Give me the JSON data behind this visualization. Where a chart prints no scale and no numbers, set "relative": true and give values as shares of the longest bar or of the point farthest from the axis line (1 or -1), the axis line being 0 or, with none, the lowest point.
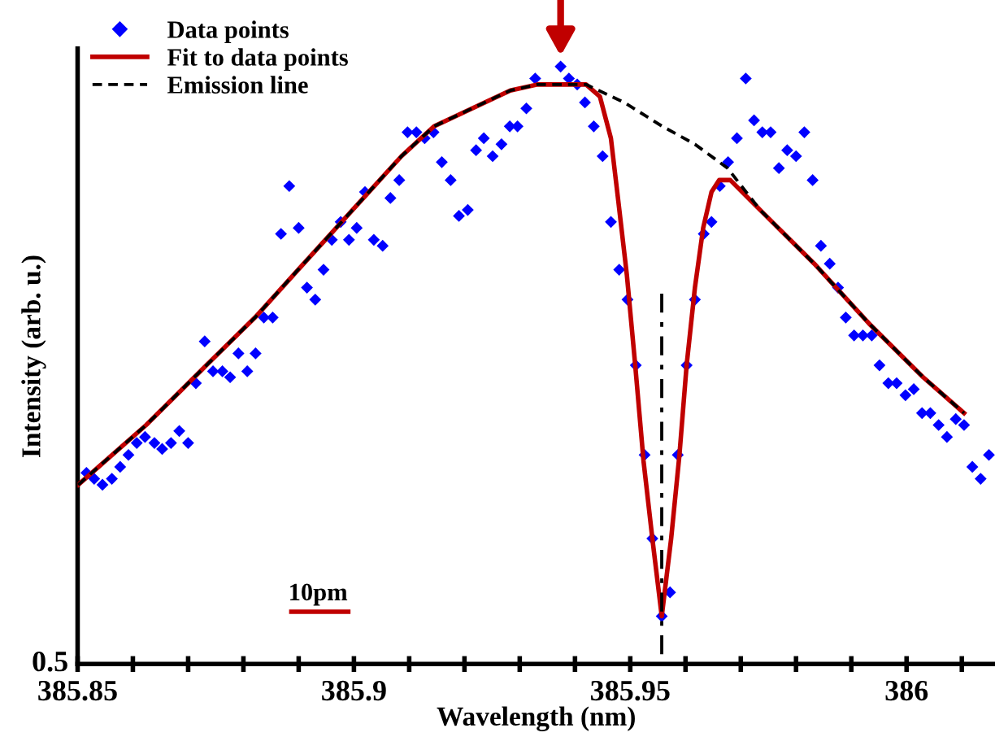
{
  "chart_data": {
    "type": "scatter",
    "relative": true,
    "xlabel": "Wavelength (nm)",
    "ylabel": "Intensity (arb. u.)",
    "xlim": [
      385.85,
      386.016
    ],
    "xticks": [
      385.85,
      {
        "value": 385.86,
        "label": null
      },
      {
        "value": 385.87,
        "label": null
      },
      {
        "value": 385.88,
        "label": null
      },
      {
        "value": 385.89,
        "label": null
      },
      385.9,
      {
        "value": 385.91,
        "label": null
      },
      {
        "value": 385.92,
        "label": null
      },
      {
        "value": 385.93,
        "label": null
      },
      {
        "value": 385.94,
        "label": null
      },
      385.95,
      {
        "value": 385.96,
        "label": null
      },
      {
        "value": 385.97,
        "label": null
      },
      {
        "value": 385.98,
        "label": null
      },
      {
        "value": 385.99,
        "label": null
      },
      386,
      {
        "value": 386.01,
        "label": null
      }
    ],
    "legend": "top left",
    "grid": false,
    "annotations": [
      "0.5",
      "10pm"
    ],
    "series": [
      {
        "name": "Data points",
        "marker": "diamond",
        "color": "#0000ff",
        "x": [
          385.8516,
          385.853,
          385.8545,
          385.8562,
          385.8577,
          385.8592,
          385.8607,
          385.8622,
          385.8639,
          385.8653,
          385.8669,
          385.8684,
          385.87,
          385.8714,
          385.873,
          385.8745,
          385.8762,
          385.8776,
          385.8791,
          385.8807,
          385.8822,
          385.8837,
          385.8853,
          385.8868,
          385.8883,
          385.89,
          385.8915,
          385.893,
          385.8945,
          385.896,
          385.8976,
          385.8991,
          385.9005,
          385.902,
          385.9036,
          385.9052,
          385.9066,
          385.9082,
          385.9097,
          385.9113,
          385.9128,
          385.9144,
          385.9159,
          385.9175,
          385.919,
          385.9206,
          385.9221,
          385.9235,
          385.9251,
          385.9267,
          385.9282,
          385.9296,
          385.9312,
          385.9328,
          385.9374,
          385.9389,
          385.9404,
          385.9418,
          385.9434,
          385.945,
          385.9465,
          385.948,
          385.9495,
          385.951,
          385.9526,
          385.954,
          385.9557,
          385.9572,
          385.9586,
          385.9602,
          385.9617,
          385.9633,
          385.9647,
          385.9662,
          385.9677,
          385.9693,
          385.9709,
          385.9724,
          385.9739,
          385.9754,
          385.9769,
          385.9784,
          385.98,
          385.9815,
          385.983,
          385.9845,
          385.9861,
          385.9876,
          385.989,
          385.9905,
          385.9921,
          385.9937,
          385.9951,
          385.9967,
          385.9982,
          385.9998,
          386.0013,
          386.0028,
          386.0043,
          386.0058,
          386.0073,
          386.0089,
          386.0104,
          386.0119,
          386.0134,
          386.0149
        ],
        "values": [
          0.32,
          0.31,
          0.3,
          0.31,
          0.33,
          0.35,
          0.37,
          0.38,
          0.37,
          0.36,
          0.37,
          0.39,
          0.37,
          0.47,
          0.54,
          0.49,
          0.49,
          0.48,
          0.52,
          0.49,
          0.52,
          0.58,
          0.58,
          0.72,
          0.8,
          0.73,
          0.63,
          0.61,
          0.66,
          0.71,
          0.74,
          0.71,
          0.73,
          0.79,
          0.71,
          0.7,
          0.78,
          0.81,
          0.89,
          0.89,
          0.88,
          0.89,
          0.84,
          0.81,
          0.75,
          0.76,
          0.86,
          0.88,
          0.85,
          0.87,
          0.9,
          0.9,
          0.93,
          0.98,
          1,
          0.98,
          0.97,
          0.94,
          0.9,
          0.85,
          0.74,
          0.66,
          0.61,
          0.5,
          0.35,
          0.21,
          0.08,
          0.12,
          0.35,
          0.5,
          0.61,
          0.72,
          0.74,
          0.8,
          0.84,
          0.88,
          0.98,
          0.91,
          0.89,
          0.89,
          0.83,
          0.86,
          0.85,
          0.89,
          0.81,
          0.7,
          0.67,
          0.63,
          0.58,
          0.55,
          0.55,
          0.55,
          0.5,
          0.47,
          0.47,
          0.45,
          0.46,
          0.42,
          0.42,
          0.4,
          0.38,
          0.41,
          0.4,
          0.33,
          0.31,
          0.35
        ]
      },
      {
        "name": "Fit to data points",
        "type": "line",
        "line_style": "solid",
        "color": "#c00000",
        "x": [
          385.8501,
          385.8624,
          385.8722,
          385.8821,
          385.8899,
          385.8968,
          385.9027,
          385.9086,
          385.9145,
          385.9214,
          385.9283,
          385.9332,
          385.9376,
          385.942,
          385.9445,
          385.9465,
          385.9479,
          385.9494,
          385.9509,
          385.9524,
          385.954,
          385.9557,
          385.9574,
          385.9589,
          385.9602,
          385.9617,
          385.9632,
          385.9647,
          385.9661,
          385.9681,
          385.9735,
          385.9833,
          385.9932,
          386.003,
          386.0104
        ],
        "values": [
          0.3,
          0.4,
          0.49,
          0.58,
          0.66,
          0.73,
          0.79,
          0.85,
          0.9,
          0.93,
          0.96,
          0.97,
          0.97,
          0.97,
          0.95,
          0.88,
          0.77,
          0.65,
          0.5,
          0.34,
          0.21,
          0.08,
          0.21,
          0.35,
          0.5,
          0.63,
          0.73,
          0.79,
          0.81,
          0.81,
          0.76,
          0.67,
          0.57,
          0.48,
          0.42
        ]
      },
      {
        "name": "Emission line",
        "type": "line",
        "line_style": "dashed",
        "color": "#000000",
        "x": [
          385.8501,
          385.8624,
          385.8722,
          385.8821,
          385.8899,
          385.8968,
          385.9027,
          385.9086,
          385.9145,
          385.9214,
          385.9283,
          385.9332,
          385.9376,
          385.942,
          385.9489,
          385.9558,
          385.9617,
          385.9676,
          385.9735,
          385.9833,
          385.9932,
          386.003,
          386.0104
        ],
        "values": [
          0.3,
          0.4,
          0.49,
          0.58,
          0.66,
          0.73,
          0.79,
          0.85,
          0.9,
          0.93,
          0.96,
          0.97,
          0.97,
          0.97,
          0.94,
          0.9,
          0.87,
          0.83,
          0.76,
          0.67,
          0.57,
          0.48,
          0.42
        ]
      },
      {
        "type": "line",
        "line_style": "dashdot",
        "color": "#000000",
        "x": [
          385.9557,
          385.9557
        ],
        "values": [
          0.62,
          0
        ]
      }
    ]
  }
}
